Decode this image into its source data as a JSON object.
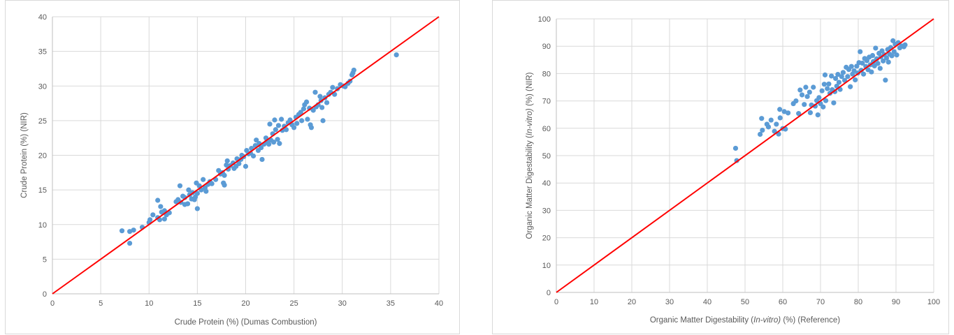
{
  "chart_data": [
    {
      "type": "scatter",
      "xlabel": "Crude Protein (%) (Dumas Combustion)",
      "ylabel": "Crude Protein (%) (NIR)",
      "xlim": [
        0,
        40
      ],
      "ylim": [
        0,
        40
      ],
      "xticks": [
        0,
        5,
        10,
        15,
        20,
        25,
        30,
        35,
        40
      ],
      "yticks": [
        0,
        5,
        10,
        15,
        20,
        25,
        30,
        35,
        40
      ],
      "grid": true,
      "point_color": "#5b9bd5",
      "line_color": "#ff0000",
      "reference_line": {
        "from": [
          0,
          0
        ],
        "to": [
          40,
          40
        ]
      },
      "points": [
        [
          7.2,
          9.1
        ],
        [
          8.0,
          9.0
        ],
        [
          8.0,
          7.3
        ],
        [
          8.4,
          9.2
        ],
        [
          9.3,
          9.6
        ],
        [
          10.0,
          10.3
        ],
        [
          10.1,
          10.7
        ],
        [
          10.4,
          11.4
        ],
        [
          10.9,
          13.5
        ],
        [
          10.9,
          11.0
        ],
        [
          11.1,
          10.7
        ],
        [
          11.2,
          12.6
        ],
        [
          11.3,
          11.8
        ],
        [
          11.6,
          12.0
        ],
        [
          11.6,
          10.8
        ],
        [
          11.8,
          11.4
        ],
        [
          12.1,
          11.7
        ],
        [
          12.8,
          13.3
        ],
        [
          13.0,
          13.6
        ],
        [
          13.2,
          15.6
        ],
        [
          13.3,
          13.2
        ],
        [
          13.5,
          14.1
        ],
        [
          13.7,
          13.9
        ],
        [
          13.7,
          12.9
        ],
        [
          14.0,
          13.0
        ],
        [
          14.1,
          15.0
        ],
        [
          14.2,
          14.3
        ],
        [
          14.4,
          13.7
        ],
        [
          14.5,
          14.6
        ],
        [
          14.7,
          13.6
        ],
        [
          14.8,
          14.0
        ],
        [
          14.9,
          16.0
        ],
        [
          15.0,
          12.3
        ],
        [
          15.0,
          14.5
        ],
        [
          15.2,
          15.6
        ],
        [
          15.4,
          15.0
        ],
        [
          15.6,
          16.5
        ],
        [
          15.8,
          15.3
        ],
        [
          15.9,
          14.8
        ],
        [
          16.1,
          15.8
        ],
        [
          16.3,
          16.2
        ],
        [
          16.5,
          15.9
        ],
        [
          16.9,
          16.5
        ],
        [
          17.2,
          17.8
        ],
        [
          17.4,
          17.3
        ],
        [
          17.6,
          17.5
        ],
        [
          17.7,
          16.0
        ],
        [
          17.8,
          15.7
        ],
        [
          17.8,
          17.1
        ],
        [
          18.0,
          18.6
        ],
        [
          18.1,
          19.2
        ],
        [
          18.2,
          18.0
        ],
        [
          18.4,
          18.5
        ],
        [
          18.7,
          18.9
        ],
        [
          18.8,
          18.1
        ],
        [
          19.0,
          18.4
        ],
        [
          19.1,
          19.5
        ],
        [
          19.3,
          18.8
        ],
        [
          19.5,
          19.4
        ],
        [
          19.6,
          20.0
        ],
        [
          19.8,
          19.8
        ],
        [
          20.0,
          18.4
        ],
        [
          20.1,
          20.7
        ],
        [
          20.3,
          20.2
        ],
        [
          20.5,
          20.3
        ],
        [
          20.6,
          21.0
        ],
        [
          20.8,
          19.9
        ],
        [
          21.0,
          21.4
        ],
        [
          21.1,
          22.2
        ],
        [
          21.3,
          20.7
        ],
        [
          21.4,
          21.7
        ],
        [
          21.6,
          21.1
        ],
        [
          21.7,
          19.4
        ],
        [
          21.9,
          21.6
        ],
        [
          22.1,
          22.5
        ],
        [
          22.2,
          22.0
        ],
        [
          22.4,
          21.6
        ],
        [
          22.5,
          24.5
        ],
        [
          22.6,
          22.2
        ],
        [
          22.8,
          23.1
        ],
        [
          22.9,
          21.9
        ],
        [
          23.0,
          25.1
        ],
        [
          23.1,
          23.7
        ],
        [
          23.3,
          22.3
        ],
        [
          23.4,
          24.3
        ],
        [
          23.5,
          21.7
        ],
        [
          23.7,
          25.2
        ],
        [
          23.8,
          23.6
        ],
        [
          24.0,
          24.2
        ],
        [
          24.2,
          23.7
        ],
        [
          24.4,
          24.7
        ],
        [
          24.6,
          25.1
        ],
        [
          24.8,
          24.4
        ],
        [
          25.0,
          24.0
        ],
        [
          25.2,
          25.5
        ],
        [
          25.3,
          24.6
        ],
        [
          25.5,
          25.9
        ],
        [
          25.7,
          26.2
        ],
        [
          25.8,
          25.0
        ],
        [
          26.0,
          26.7
        ],
        [
          26.1,
          27.3
        ],
        [
          26.3,
          27.7
        ],
        [
          26.4,
          25.2
        ],
        [
          26.6,
          26.8
        ],
        [
          26.7,
          24.4
        ],
        [
          26.8,
          24.0
        ],
        [
          27.0,
          26.5
        ],
        [
          27.2,
          29.1
        ],
        [
          27.3,
          27.0
        ],
        [
          27.5,
          27.3
        ],
        [
          27.7,
          28.5
        ],
        [
          27.8,
          27.9
        ],
        [
          27.9,
          26.9
        ],
        [
          28.0,
          25.0
        ],
        [
          28.2,
          28.3
        ],
        [
          28.4,
          27.6
        ],
        [
          28.6,
          28.8
        ],
        [
          28.8,
          29.1
        ],
        [
          29.0,
          29.8
        ],
        [
          29.2,
          28.8
        ],
        [
          29.5,
          29.6
        ],
        [
          29.8,
          30.2
        ],
        [
          30.1,
          30.0
        ],
        [
          30.3,
          29.9
        ],
        [
          30.6,
          30.4
        ],
        [
          30.8,
          30.7
        ],
        [
          31.0,
          31.6
        ],
        [
          31.1,
          31.9
        ],
        [
          31.2,
          32.3
        ],
        [
          35.6,
          34.5
        ]
      ]
    },
    {
      "type": "scatter",
      "xlabel_parts": [
        "Organic Matter Digestability ",
        "In-vitro)",
        " (%) (Reference)"
      ],
      "xlabel_prefix": "(",
      "ylabel_parts": [
        "Organic Matter Digestability ",
        "In-vitro)",
        " (%) (NIR)"
      ],
      "ylabel_prefix": "(",
      "xlim": [
        0,
        100
      ],
      "ylim": [
        0,
        100
      ],
      "xticks": [
        0,
        10,
        20,
        30,
        40,
        50,
        60,
        70,
        80,
        90,
        100
      ],
      "yticks": [
        0,
        10,
        20,
        30,
        40,
        50,
        60,
        70,
        80,
        90,
        100
      ],
      "grid": true,
      "point_color": "#5b9bd5",
      "line_color": "#ff0000",
      "reference_line": {
        "from": [
          0,
          0
        ],
        "to": [
          100,
          100
        ]
      },
      "points": [
        [
          47.5,
          52.7
        ],
        [
          47.8,
          48.2
        ],
        [
          54.0,
          57.8
        ],
        [
          54.4,
          63.6
        ],
        [
          54.6,
          59.3
        ],
        [
          55.8,
          61.5
        ],
        [
          56.2,
          60.5
        ],
        [
          56.9,
          63.0
        ],
        [
          57.8,
          58.9
        ],
        [
          58.3,
          61.5
        ],
        [
          58.9,
          57.9
        ],
        [
          59.2,
          66.9
        ],
        [
          59.3,
          63.8
        ],
        [
          60.0,
          59.9
        ],
        [
          60.4,
          66.1
        ],
        [
          60.7,
          59.7
        ],
        [
          61.4,
          65.6
        ],
        [
          62.8,
          69.0
        ],
        [
          63.5,
          70.0
        ],
        [
          64.2,
          65.4
        ],
        [
          64.6,
          74.0
        ],
        [
          65.1,
          72.2
        ],
        [
          65.7,
          68.7
        ],
        [
          66.1,
          75.0
        ],
        [
          66.5,
          71.6
        ],
        [
          67.1,
          73.2
        ],
        [
          67.3,
          65.7
        ],
        [
          67.6,
          68.5
        ],
        [
          68.1,
          75.0
        ],
        [
          68.6,
          68.1
        ],
        [
          69.0,
          70.1
        ],
        [
          69.3,
          64.9
        ],
        [
          69.6,
          71.2
        ],
        [
          70.0,
          69.0
        ],
        [
          70.4,
          73.7
        ],
        [
          70.7,
          67.8
        ],
        [
          71.0,
          76.1
        ],
        [
          71.2,
          79.5
        ],
        [
          71.4,
          70.1
        ],
        [
          71.8,
          74.5
        ],
        [
          72.2,
          76.2
        ],
        [
          72.5,
          72.8
        ],
        [
          72.9,
          79.1
        ],
        [
          73.1,
          74.1
        ],
        [
          73.5,
          69.3
        ],
        [
          73.8,
          73.4
        ],
        [
          74.0,
          78.2
        ],
        [
          74.3,
          75.4
        ],
        [
          74.6,
          79.7
        ],
        [
          74.9,
          76.8
        ],
        [
          75.2,
          74.2
        ],
        [
          75.6,
          78.9
        ],
        [
          76.0,
          80.4
        ],
        [
          76.4,
          77.5
        ],
        [
          76.8,
          82.3
        ],
        [
          77.2,
          78.9
        ],
        [
          77.5,
          81.5
        ],
        [
          77.9,
          75.2
        ],
        [
          78.2,
          82.6
        ],
        [
          78.5,
          79.8
        ],
        [
          78.9,
          81.0
        ],
        [
          79.2,
          77.7
        ],
        [
          79.6,
          82.7
        ],
        [
          79.9,
          80.2
        ],
        [
          80.2,
          84.0
        ],
        [
          80.5,
          88.0
        ],
        [
          80.8,
          81.2
        ],
        [
          81.1,
          83.8
        ],
        [
          81.4,
          79.8
        ],
        [
          81.7,
          85.5
        ],
        [
          82.0,
          82.6
        ],
        [
          82.3,
          84.7
        ],
        [
          82.6,
          81.4
        ],
        [
          82.9,
          86.0
        ],
        [
          83.2,
          83.2
        ],
        [
          83.5,
          80.6
        ],
        [
          83.8,
          86.6
        ],
        [
          84.0,
          84.4
        ],
        [
          84.3,
          82.8
        ],
        [
          84.6,
          89.3
        ],
        [
          84.9,
          85.4
        ],
        [
          85.2,
          83.7
        ],
        [
          85.5,
          87.4
        ],
        [
          85.8,
          81.9
        ],
        [
          86.0,
          86.1
        ],
        [
          86.3,
          88.3
        ],
        [
          86.6,
          84.6
        ],
        [
          86.9,
          86.9
        ],
        [
          87.2,
          77.6
        ],
        [
          87.5,
          85.7
        ],
        [
          87.8,
          88.8
        ],
        [
          88.0,
          84.2
        ],
        [
          88.3,
          87.1
        ],
        [
          88.6,
          89.5
        ],
        [
          88.9,
          86.5
        ],
        [
          89.2,
          92.0
        ],
        [
          89.5,
          88.0
        ],
        [
          89.8,
          90.7
        ],
        [
          90.2,
          86.8
        ],
        [
          90.6,
          91.3
        ],
        [
          91.0,
          89.4
        ],
        [
          91.5,
          90.1
        ],
        [
          92.1,
          89.8
        ],
        [
          92.4,
          90.5
        ]
      ]
    }
  ]
}
